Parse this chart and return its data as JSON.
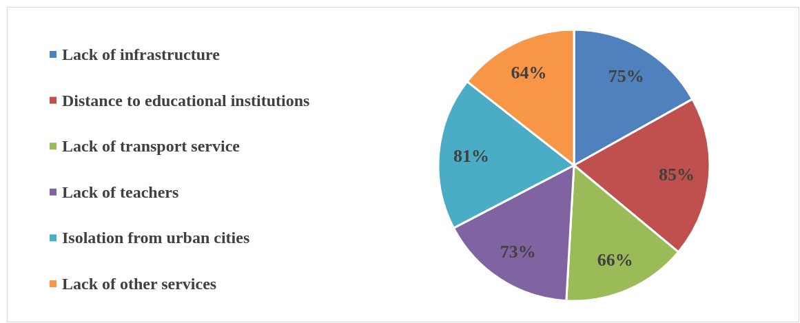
{
  "chart_data": {
    "type": "pie",
    "categories": [
      "Lack of infrastructure",
      "Distance to educational institutions",
      "Lack of transport service",
      "Lack of teachers",
      "Isolation from urban cities",
      "Lack of other services"
    ],
    "values": [
      75,
      85,
      66,
      73,
      81,
      64
    ],
    "colors": [
      "#4f81bd",
      "#c0504d",
      "#9bbb59",
      "#8064a2",
      "#4bacc6",
      "#f79646"
    ],
    "value_labels": [
      "75%",
      "85%",
      "66%",
      "73%",
      "81%",
      "64%"
    ],
    "legend": "left"
  }
}
